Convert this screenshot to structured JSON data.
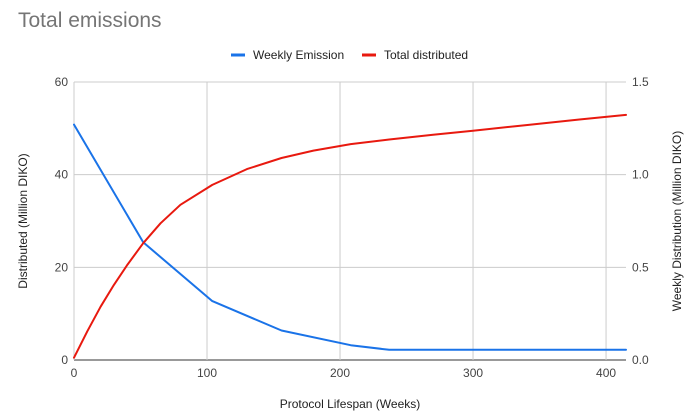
{
  "chart_data": {
    "type": "line",
    "title": "Total emissions",
    "xlabel": "Protocol Lifespan (Weeks)",
    "ylabel_left": "Distributed (Million DIKO)",
    "ylabel_right": "Weekly Distribution (Million DIKO)",
    "xlim": [
      0,
      415
    ],
    "ylim_left": [
      0,
      60
    ],
    "ylim_right": [
      0,
      1.5
    ],
    "x_ticks": [
      0,
      100,
      200,
      300,
      400
    ],
    "y_ticks_left": [
      0,
      20,
      40,
      60
    ],
    "y_ticks_right": [
      "0.0",
      "0.5",
      "1.0",
      "1.5"
    ],
    "legend_position": "top-center",
    "grid": true,
    "series": [
      {
        "name": "Weekly Emission",
        "axis": "right",
        "color": "#1a73e8",
        "x": [
          0,
          52,
          104,
          156,
          208,
          237,
          415
        ],
        "y": [
          1.27,
          0.635,
          0.318,
          0.159,
          0.08,
          0.055,
          0.055
        ]
      },
      {
        "name": "Total distributed",
        "axis": "left",
        "color": "#e8190f",
        "x": [
          0,
          10,
          20,
          30,
          40,
          52,
          65,
          80,
          104,
          130,
          156,
          180,
          208,
          237,
          270,
          300,
          340,
          380,
          415
        ],
        "y": [
          0.5,
          6.2,
          11.5,
          16.2,
          20.5,
          25.2,
          29.5,
          33.5,
          37.8,
          41.2,
          43.6,
          45.2,
          46.6,
          47.6,
          48.6,
          49.5,
          50.7,
          51.9,
          52.9
        ]
      }
    ]
  }
}
